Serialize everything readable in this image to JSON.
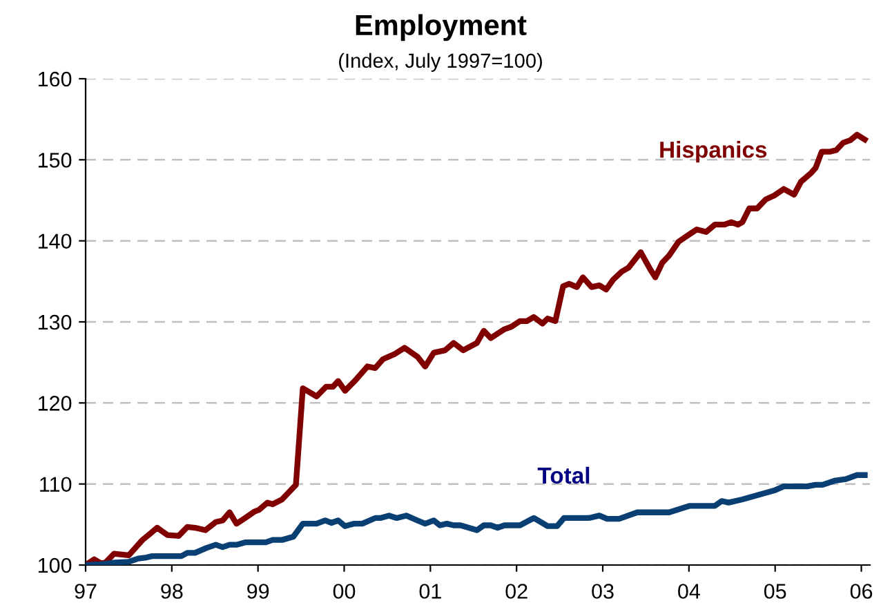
{
  "chart_data": {
    "type": "line",
    "title": "Employment",
    "subtitle": "(Index, July 1997=100)",
    "xlim": [
      1997,
      2006.1
    ],
    "ylim": [
      100,
      160
    ],
    "xticks": [
      {
        "value": 1997,
        "label": "97"
      },
      {
        "value": 1998,
        "label": "98"
      },
      {
        "value": 1999,
        "label": "99"
      },
      {
        "value": 2000,
        "label": "00"
      },
      {
        "value": 2001,
        "label": "01"
      },
      {
        "value": 2002,
        "label": "02"
      },
      {
        "value": 2003,
        "label": "03"
      },
      {
        "value": 2004,
        "label": "04"
      },
      {
        "value": 2005,
        "label": "05"
      },
      {
        "value": 2006,
        "label": "06"
      }
    ],
    "yticks": [
      100,
      110,
      120,
      130,
      140,
      150,
      160
    ],
    "grid": "y",
    "legend": false,
    "marker": "none",
    "line_style": "solid",
    "series": [
      {
        "name": "Hispanics",
        "color": "#800000",
        "x": [
          1997.0,
          1997.1,
          1997.18,
          1997.23,
          1997.33,
          1997.5,
          1997.66,
          1997.74,
          1997.83,
          1997.95,
          1998.08,
          1998.18,
          1998.27,
          1998.39,
          1998.51,
          1998.59,
          1998.67,
          1998.75,
          1998.85,
          1998.96,
          1999.01,
          1999.11,
          1999.17,
          1999.28,
          1999.44,
          1999.52,
          1999.68,
          1999.79,
          1999.87,
          1999.93,
          2000.01,
          2000.13,
          2000.27,
          2000.36,
          2000.45,
          2000.58,
          2000.7,
          2000.85,
          2000.94,
          2001.04,
          2001.17,
          2001.27,
          2001.38,
          2001.54,
          2001.62,
          2001.7,
          2001.86,
          2001.94,
          2002.04,
          2002.12,
          2002.2,
          2002.3,
          2002.36,
          2002.45,
          2002.54,
          2002.61,
          2002.7,
          2002.77,
          2002.87,
          2002.96,
          2003.04,
          2003.12,
          2003.22,
          2003.3,
          2003.44,
          2003.55,
          2003.61,
          2003.69,
          2003.77,
          2003.88,
          2003.99,
          2004.09,
          2004.2,
          2004.3,
          2004.41,
          2004.49,
          2004.57,
          2004.62,
          2004.7,
          2004.79,
          2004.89,
          2004.99,
          2005.1,
          2005.22,
          2005.3,
          2005.42,
          2005.47,
          2005.54,
          2005.64,
          2005.71,
          2005.79,
          2005.87,
          2005.95,
          2006.04
        ],
        "values": [
          100.0,
          100.7,
          100.2,
          100.3,
          101.4,
          101.2,
          103.1,
          103.8,
          104.6,
          103.7,
          103.6,
          104.7,
          104.6,
          104.3,
          105.3,
          105.5,
          106.5,
          105.1,
          105.8,
          106.6,
          106.8,
          107.7,
          107.5,
          108.1,
          109.9,
          121.8,
          120.8,
          122.0,
          122.0,
          122.7,
          121.5,
          122.8,
          124.5,
          124.3,
          125.4,
          126.0,
          126.8,
          125.7,
          124.5,
          126.2,
          126.5,
          127.4,
          126.5,
          127.4,
          128.9,
          128.0,
          129.1,
          129.4,
          130.1,
          130.1,
          130.6,
          129.8,
          130.4,
          130.1,
          134.4,
          134.7,
          134.3,
          135.5,
          134.3,
          134.5,
          134.0,
          135.2,
          136.2,
          136.7,
          138.6,
          136.5,
          135.5,
          137.3,
          138.2,
          139.9,
          140.7,
          141.4,
          141.1,
          142.0,
          142.0,
          142.3,
          142.0,
          142.3,
          144.0,
          144.0,
          145.1,
          145.6,
          146.4,
          145.7,
          147.3,
          148.4,
          149.0,
          151.0,
          151.0,
          151.2,
          152.1,
          152.4,
          153.1,
          152.5
        ]
      },
      {
        "name": "Total",
        "color": "#0a3f73",
        "x": [
          1997.0,
          1997.18,
          1997.34,
          1997.5,
          1997.61,
          1997.69,
          1997.77,
          1998.11,
          1998.18,
          1998.27,
          1998.4,
          1998.51,
          1998.59,
          1998.67,
          1998.75,
          1998.85,
          1999.09,
          1999.17,
          1999.28,
          1999.41,
          1999.52,
          1999.68,
          1999.78,
          1999.85,
          1999.93,
          2000.01,
          2000.11,
          2000.21,
          2000.36,
          2000.42,
          2000.52,
          2000.61,
          2000.72,
          2000.85,
          2000.94,
          2001.04,
          2001.11,
          2001.19,
          2001.27,
          2001.35,
          2001.54,
          2001.62,
          2001.7,
          2001.78,
          2001.86,
          2002.04,
          2002.2,
          2002.36,
          2002.47,
          2002.55,
          2002.84,
          2002.96,
          2003.05,
          2003.19,
          2003.4,
          2003.77,
          2004.01,
          2004.3,
          2004.38,
          2004.46,
          2004.62,
          2004.99,
          2005.1,
          2005.37,
          2005.47,
          2005.55,
          2005.69,
          2005.82,
          2005.95,
          2006.04
        ],
        "values": [
          100.0,
          100.1,
          100.3,
          100.4,
          100.8,
          100.9,
          101.1,
          101.1,
          101.5,
          101.5,
          102.1,
          102.5,
          102.2,
          102.5,
          102.5,
          102.8,
          102.8,
          103.1,
          103.1,
          103.5,
          105.1,
          105.1,
          105.5,
          105.2,
          105.5,
          104.8,
          105.1,
          105.1,
          105.8,
          105.8,
          106.1,
          105.8,
          106.1,
          105.5,
          105.1,
          105.5,
          104.9,
          105.1,
          104.9,
          104.9,
          104.3,
          104.9,
          104.9,
          104.6,
          104.9,
          104.9,
          105.8,
          104.8,
          104.8,
          105.8,
          105.8,
          106.1,
          105.7,
          105.7,
          106.5,
          106.5,
          107.3,
          107.3,
          107.9,
          107.7,
          108.1,
          109.2,
          109.7,
          109.7,
          109.9,
          109.9,
          110.4,
          110.6,
          111.1,
          111.1
        ]
      }
    ]
  }
}
